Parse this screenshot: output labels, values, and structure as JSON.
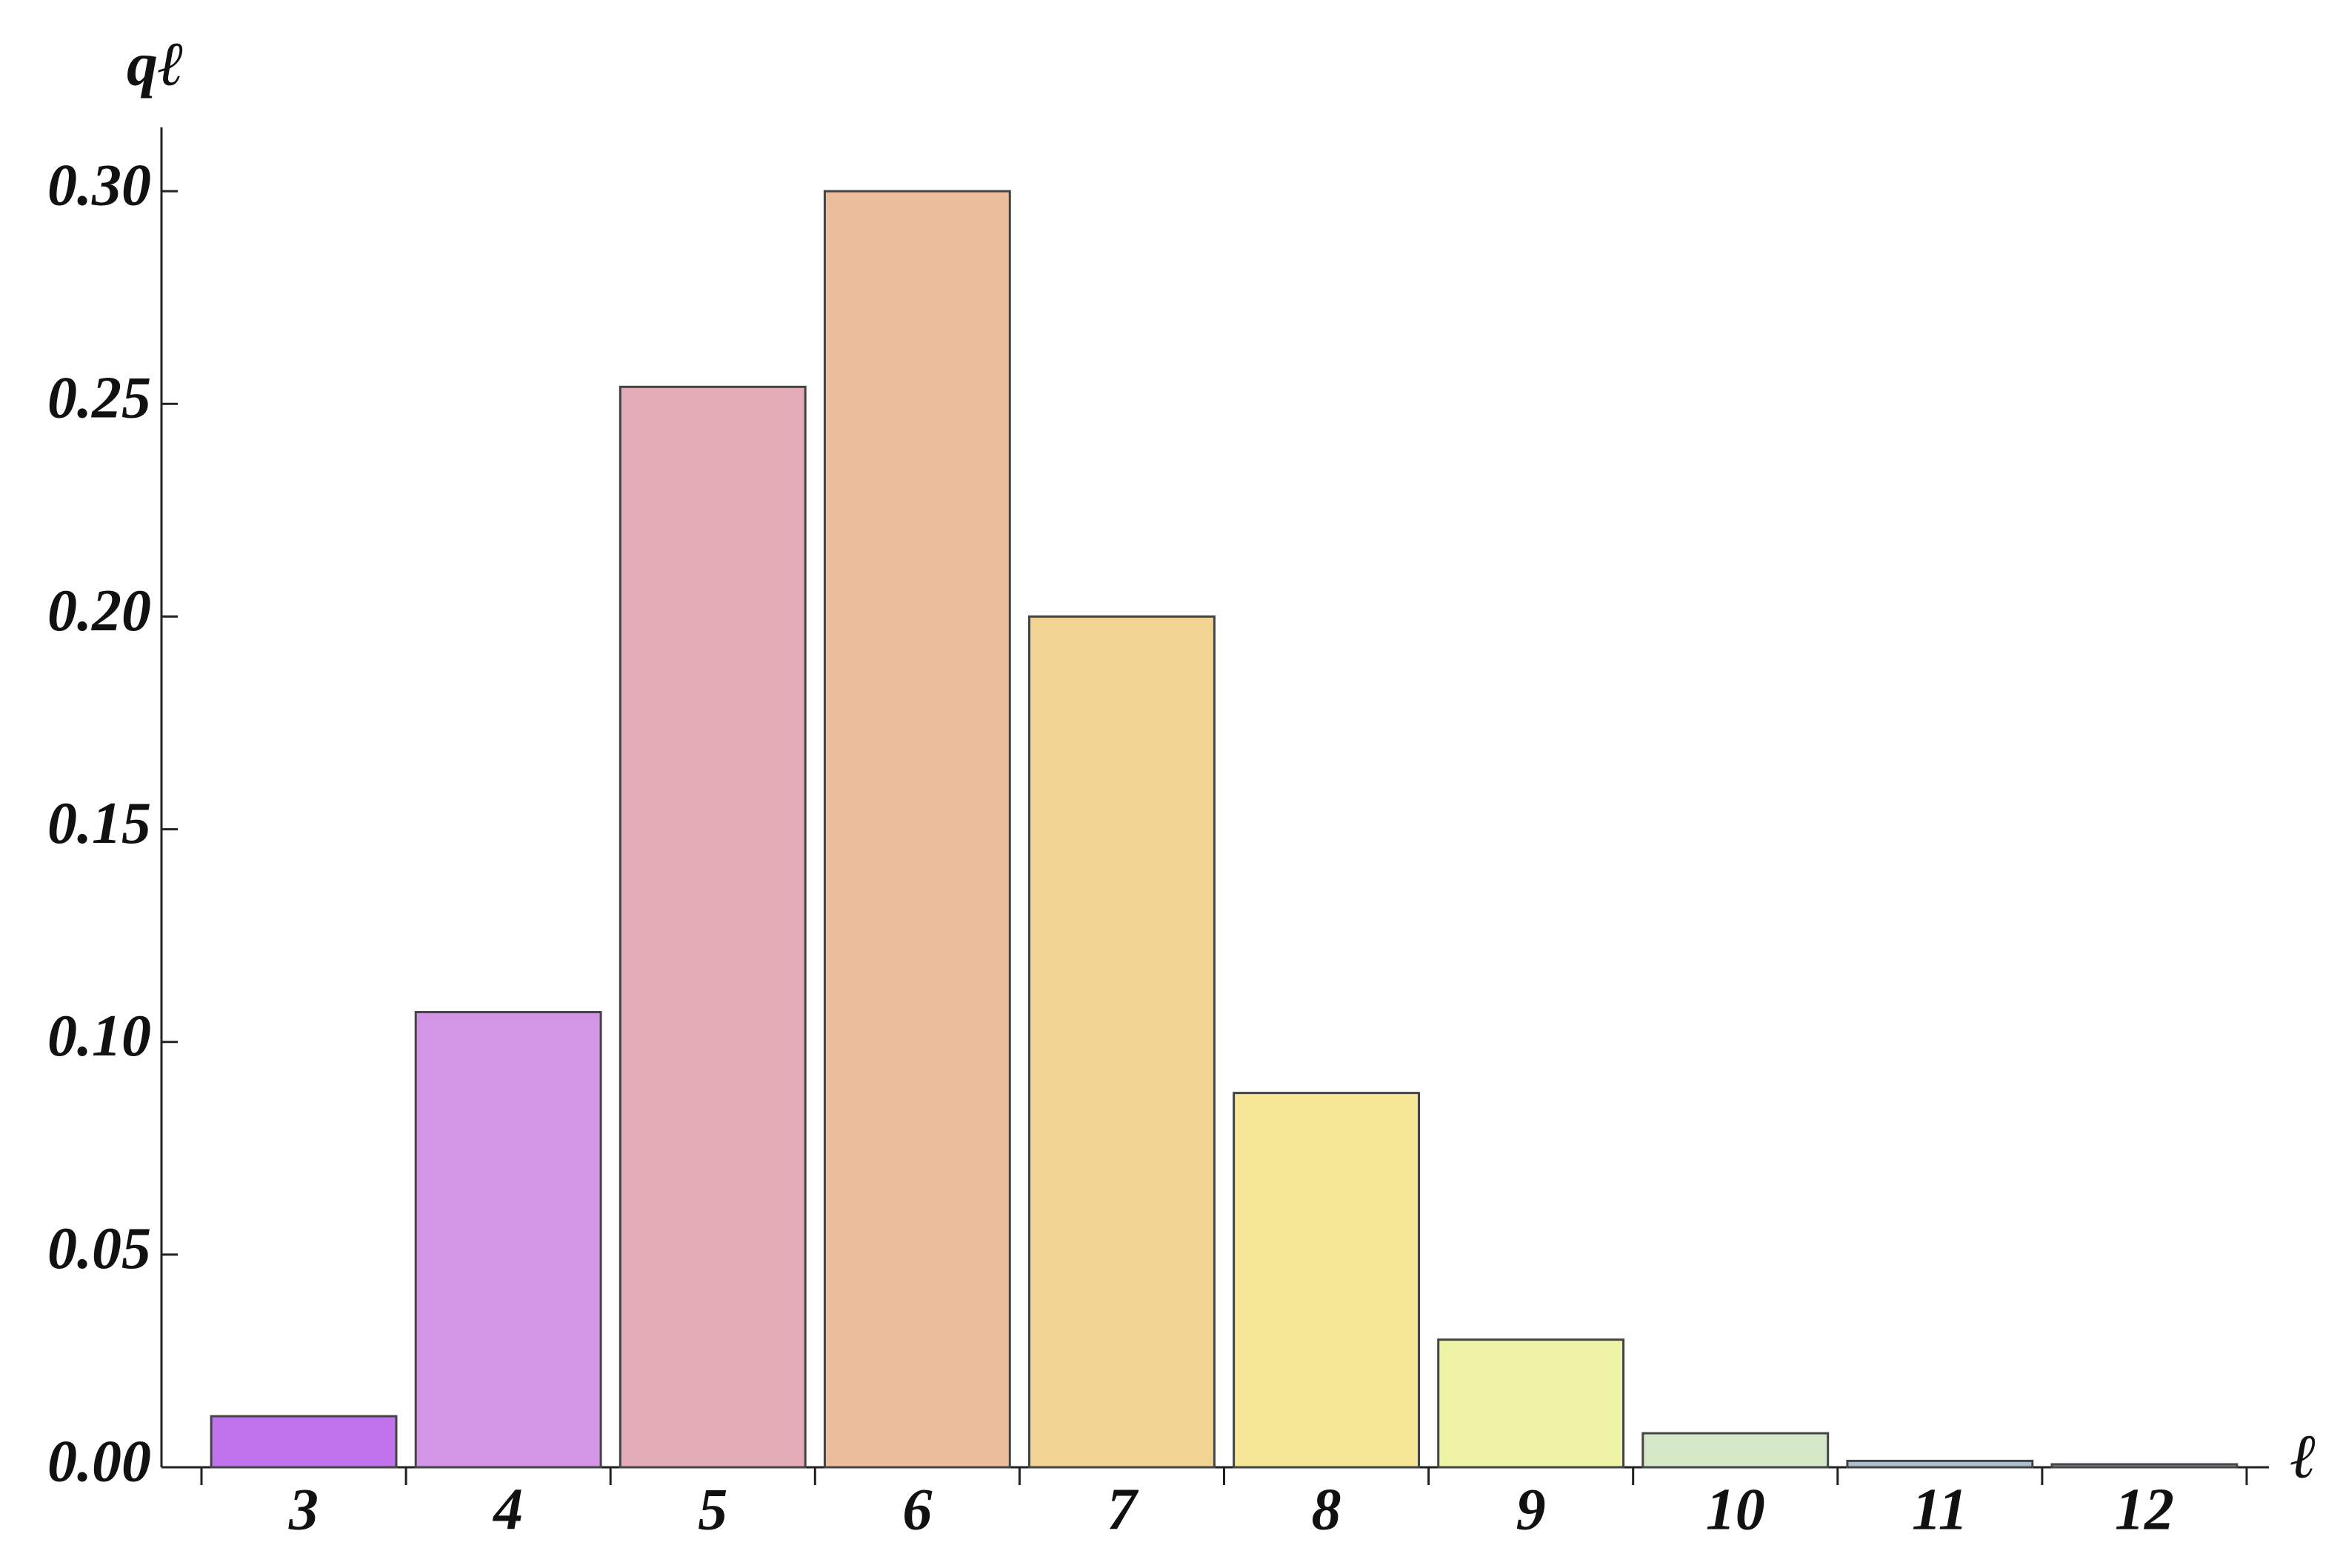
{
  "chart_data": {
    "type": "bar",
    "y_label": "qℓ",
    "x_label": "ℓ",
    "categories": [
      "3",
      "4",
      "5",
      "6",
      "7",
      "8",
      "9",
      "10",
      "11",
      "12"
    ],
    "values": [
      0.012,
      0.107,
      0.254,
      0.3,
      0.2,
      0.088,
      0.03,
      0.008,
      0.0015,
      0.0007
    ],
    "colors": [
      "#c173ee",
      "#d396e6",
      "#e3abb6",
      "#ecbd9d",
      "#f2d492",
      "#f5e795",
      "#eef3a6",
      "#d5e9c9",
      "#a9bfcf",
      "#8fa0b0"
    ],
    "ylim": [
      0,
      0.315
    ],
    "yticks": [
      {
        "value": 0,
        "label": "0.00"
      },
      0.05,
      {
        "value": 0.1,
        "label": "0.10"
      },
      0.15,
      {
        "value": 0.2,
        "label": "0.20"
      },
      0.25,
      {
        "value": 0.3,
        "label": "0.30"
      }
    ]
  }
}
